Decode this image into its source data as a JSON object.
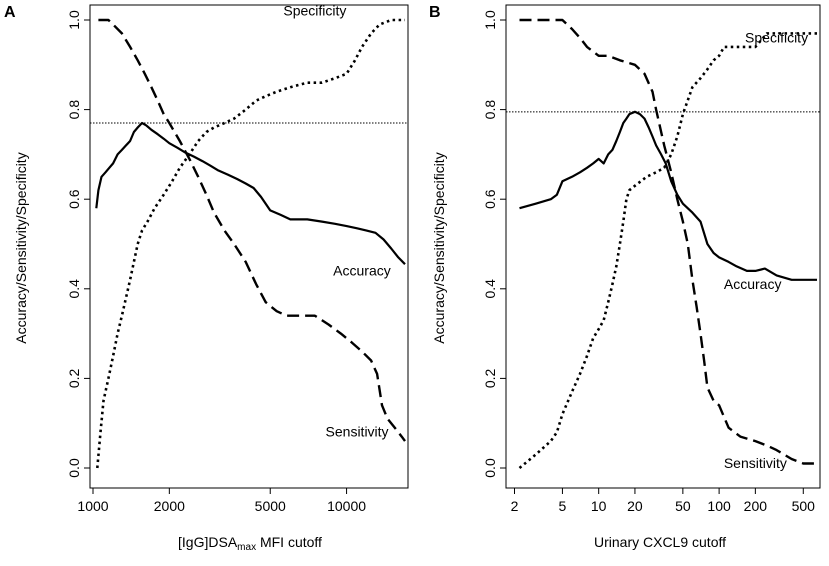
{
  "chart_data": [
    {
      "type": "line",
      "panel_label": "A",
      "xlabel": "[IgG]DSA",
      "xlabel_sub": "max",
      "xlabel_suffix": " MFI cutoff",
      "ylabel": "Accuracy/Sensitivity/Specificity",
      "x_scale": "log",
      "xlim": [
        1000,
        17000
      ],
      "ylim": [
        0,
        1.0
      ],
      "x_ticks": [
        1000,
        2000,
        5000,
        10000
      ],
      "x_tick_labels": [
        "1000",
        "2000",
        "5000",
        "10000"
      ],
      "y_ticks": [
        0.0,
        0.2,
        0.4,
        0.6,
        0.8,
        1.0
      ],
      "y_tick_labels": [
        "0.0",
        "0.2",
        "0.4",
        "0.6",
        "0.8",
        "1.0"
      ],
      "reference_line_y": 0.77,
      "series": [
        {
          "name": "Accuracy",
          "style": "solid",
          "label_at": [
            11500,
            0.43
          ],
          "points": [
            [
              1030,
              0.58
            ],
            [
              1050,
              0.62
            ],
            [
              1080,
              0.65
            ],
            [
              1120,
              0.66
            ],
            [
              1160,
              0.67
            ],
            [
              1200,
              0.68
            ],
            [
              1250,
              0.7
            ],
            [
              1300,
              0.71
            ],
            [
              1350,
              0.72
            ],
            [
              1400,
              0.73
            ],
            [
              1450,
              0.75
            ],
            [
              1500,
              0.76
            ],
            [
              1560,
              0.77
            ],
            [
              1620,
              0.765
            ],
            [
              1700,
              0.755
            ],
            [
              1800,
              0.745
            ],
            [
              1900,
              0.735
            ],
            [
              2000,
              0.725
            ],
            [
              2150,
              0.715
            ],
            [
              2300,
              0.705
            ],
            [
              2500,
              0.695
            ],
            [
              2700,
              0.685
            ],
            [
              2900,
              0.675
            ],
            [
              3100,
              0.665
            ],
            [
              3400,
              0.655
            ],
            [
              3700,
              0.645
            ],
            [
              4000,
              0.635
            ],
            [
              4300,
              0.625
            ],
            [
              4600,
              0.605
            ],
            [
              5000,
              0.575
            ],
            [
              5500,
              0.565
            ],
            [
              6000,
              0.555
            ],
            [
              7000,
              0.555
            ],
            [
              8000,
              0.55
            ],
            [
              9000,
              0.545
            ],
            [
              10000,
              0.54
            ],
            [
              11000,
              0.535
            ],
            [
              12000,
              0.53
            ],
            [
              13000,
              0.525
            ],
            [
              14000,
              0.51
            ],
            [
              15000,
              0.49
            ],
            [
              16000,
              0.47
            ],
            [
              17000,
              0.455
            ]
          ]
        },
        {
          "name": "Sensitivity",
          "style": "dashed",
          "label_at": [
            11000,
            0.07
          ],
          "points": [
            [
              1050,
              1.0
            ],
            [
              1150,
              1.0
            ],
            [
              1200,
              0.99
            ],
            [
              1300,
              0.97
            ],
            [
              1400,
              0.94
            ],
            [
              1500,
              0.91
            ],
            [
              1600,
              0.88
            ],
            [
              1700,
              0.85
            ],
            [
              1800,
              0.82
            ],
            [
              1900,
              0.79
            ],
            [
              2000,
              0.77
            ],
            [
              2200,
              0.73
            ],
            [
              2400,
              0.69
            ],
            [
              2600,
              0.65
            ],
            [
              2800,
              0.61
            ],
            [
              3000,
              0.57
            ],
            [
              3300,
              0.53
            ],
            [
              3600,
              0.5
            ],
            [
              4000,
              0.46
            ],
            [
              4400,
              0.41
            ],
            [
              4800,
              0.37
            ],
            [
              5300,
              0.35
            ],
            [
              5800,
              0.34
            ],
            [
              6500,
              0.34
            ],
            [
              7500,
              0.34
            ],
            [
              8500,
              0.32
            ],
            [
              9500,
              0.3
            ],
            [
              10500,
              0.28
            ],
            [
              11500,
              0.26
            ],
            [
              12500,
              0.24
            ],
            [
              13200,
              0.21
            ],
            [
              13800,
              0.14
            ],
            [
              14500,
              0.11
            ],
            [
              15500,
              0.09
            ],
            [
              16500,
              0.07
            ],
            [
              17000,
              0.06
            ]
          ]
        },
        {
          "name": "Specificity",
          "style": "dotted",
          "label_at": [
            7500,
            1.01
          ],
          "points": [
            [
              1040,
              0.0
            ],
            [
              1070,
              0.08
            ],
            [
              1100,
              0.15
            ],
            [
              1150,
              0.2
            ],
            [
              1200,
              0.25
            ],
            [
              1250,
              0.3
            ],
            [
              1300,
              0.34
            ],
            [
              1350,
              0.38
            ],
            [
              1400,
              0.42
            ],
            [
              1450,
              0.46
            ],
            [
              1500,
              0.5
            ],
            [
              1560,
              0.53
            ],
            [
              1640,
              0.55
            ],
            [
              1750,
              0.58
            ],
            [
              1900,
              0.61
            ],
            [
              2050,
              0.64
            ],
            [
              2200,
              0.67
            ],
            [
              2400,
              0.7
            ],
            [
              2600,
              0.73
            ],
            [
              2800,
              0.75
            ],
            [
              3000,
              0.76
            ],
            [
              3300,
              0.77
            ],
            [
              3600,
              0.78
            ],
            [
              4000,
              0.8
            ],
            [
              4400,
              0.82
            ],
            [
              4800,
              0.83
            ],
            [
              5300,
              0.84
            ],
            [
              6000,
              0.85
            ],
            [
              7000,
              0.86
            ],
            [
              8000,
              0.86
            ],
            [
              9000,
              0.87
            ],
            [
              10000,
              0.88
            ],
            [
              10800,
              0.91
            ],
            [
              11500,
              0.94
            ],
            [
              12500,
              0.97
            ],
            [
              13500,
              0.99
            ],
            [
              15000,
              1.0
            ],
            [
              17000,
              1.0
            ]
          ]
        }
      ]
    },
    {
      "type": "line",
      "panel_label": "B",
      "xlabel": "Urinary  CXCL9 cutoff",
      "ylabel": "Accuracy/Sensitivity/Specificity",
      "x_scale": "log",
      "xlim": [
        1.8,
        650
      ],
      "ylim": [
        0,
        1.0
      ],
      "x_ticks": [
        2,
        5,
        10,
        20,
        50,
        100,
        200,
        500
      ],
      "x_tick_labels": [
        "2",
        "5",
        "10",
        "20",
        "50",
        "100",
        "200",
        "500"
      ],
      "y_ticks": [
        0.0,
        0.2,
        0.4,
        0.6,
        0.8,
        1.0
      ],
      "y_tick_labels": [
        "0.0",
        "0.2",
        "0.4",
        "0.6",
        "0.8",
        "1.0"
      ],
      "reference_line_y": 0.795,
      "series": [
        {
          "name": "Accuracy",
          "style": "solid",
          "label_at": [
            190,
            0.4
          ],
          "points": [
            [
              2.2,
              0.58
            ],
            [
              3,
              0.59
            ],
            [
              4,
              0.6
            ],
            [
              4.5,
              0.61
            ],
            [
              5,
              0.64
            ],
            [
              6,
              0.65
            ],
            [
              7,
              0.66
            ],
            [
              8,
              0.67
            ],
            [
              9,
              0.68
            ],
            [
              10,
              0.69
            ],
            [
              11,
              0.68
            ],
            [
              12,
              0.7
            ],
            [
              13,
              0.71
            ],
            [
              14,
              0.73
            ],
            [
              15,
              0.75
            ],
            [
              16,
              0.77
            ],
            [
              17,
              0.78
            ],
            [
              18,
              0.79
            ],
            [
              20,
              0.795
            ],
            [
              22,
              0.79
            ],
            [
              24,
              0.78
            ],
            [
              26,
              0.76
            ],
            [
              28,
              0.74
            ],
            [
              30,
              0.72
            ],
            [
              33,
              0.7
            ],
            [
              36,
              0.68
            ],
            [
              40,
              0.64
            ],
            [
              45,
              0.61
            ],
            [
              50,
              0.59
            ],
            [
              60,
              0.57
            ],
            [
              70,
              0.55
            ],
            [
              80,
              0.5
            ],
            [
              90,
              0.48
            ],
            [
              100,
              0.47
            ],
            [
              120,
              0.46
            ],
            [
              140,
              0.45
            ],
            [
              170,
              0.44
            ],
            [
              200,
              0.44
            ],
            [
              240,
              0.445
            ],
            [
              300,
              0.43
            ],
            [
              400,
              0.42
            ],
            [
              650,
              0.42
            ]
          ]
        },
        {
          "name": "Sensitivity",
          "style": "dashed",
          "label_at": [
            200,
            0.0
          ],
          "points": [
            [
              2.2,
              1.0
            ],
            [
              4,
              1.0
            ],
            [
              5,
              1.0
            ],
            [
              6,
              0.98
            ],
            [
              7,
              0.96
            ],
            [
              8,
              0.94
            ],
            [
              10,
              0.92
            ],
            [
              12,
              0.92
            ],
            [
              15,
              0.91
            ],
            [
              20,
              0.9
            ],
            [
              24,
              0.88
            ],
            [
              28,
              0.84
            ],
            [
              30,
              0.8
            ],
            [
              35,
              0.72
            ],
            [
              40,
              0.66
            ],
            [
              45,
              0.6
            ],
            [
              50,
              0.55
            ],
            [
              55,
              0.5
            ],
            [
              60,
              0.42
            ],
            [
              65,
              0.36
            ],
            [
              70,
              0.3
            ],
            [
              75,
              0.24
            ],
            [
              80,
              0.18
            ],
            [
              90,
              0.15
            ],
            [
              100,
              0.14
            ],
            [
              120,
              0.09
            ],
            [
              150,
              0.07
            ],
            [
              200,
              0.06
            ],
            [
              250,
              0.05
            ],
            [
              300,
              0.04
            ],
            [
              400,
              0.02
            ],
            [
              500,
              0.01
            ],
            [
              650,
              0.01
            ]
          ]
        },
        {
          "name": "Specificity",
          "style": "dotted",
          "label_at": [
            300,
            0.95
          ],
          "points": [
            [
              2.2,
              0.0
            ],
            [
              3,
              0.03
            ],
            [
              4,
              0.06
            ],
            [
              4.5,
              0.08
            ],
            [
              5,
              0.12
            ],
            [
              6,
              0.17
            ],
            [
              7,
              0.21
            ],
            [
              8,
              0.25
            ],
            [
              9,
              0.29
            ],
            [
              10,
              0.31
            ],
            [
              11,
              0.33
            ],
            [
              12,
              0.37
            ],
            [
              13,
              0.41
            ],
            [
              14,
              0.45
            ],
            [
              15,
              0.5
            ],
            [
              16,
              0.55
            ],
            [
              17,
              0.6
            ],
            [
              18,
              0.62
            ],
            [
              20,
              0.63
            ],
            [
              25,
              0.65
            ],
            [
              30,
              0.66
            ],
            [
              35,
              0.67
            ],
            [
              40,
              0.7
            ],
            [
              45,
              0.74
            ],
            [
              50,
              0.79
            ],
            [
              60,
              0.85
            ],
            [
              70,
              0.87
            ],
            [
              80,
              0.89
            ],
            [
              90,
              0.91
            ],
            [
              100,
              0.92
            ],
            [
              110,
              0.94
            ],
            [
              150,
              0.94
            ],
            [
              200,
              0.94
            ],
            [
              250,
              0.97
            ],
            [
              400,
              0.97
            ],
            [
              650,
              0.97
            ]
          ]
        }
      ]
    }
  ]
}
